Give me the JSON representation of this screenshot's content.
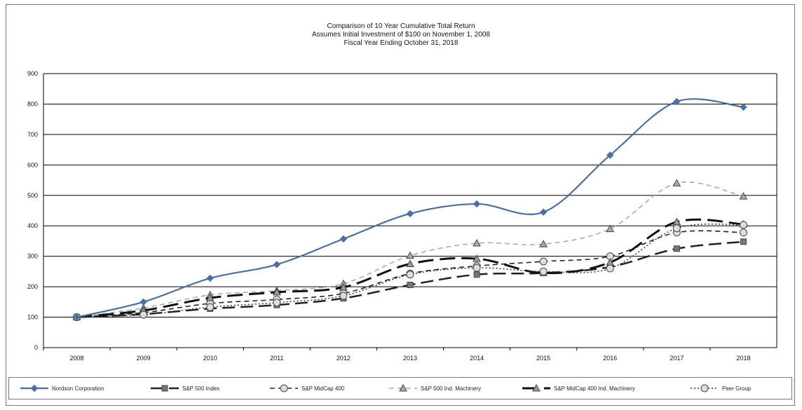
{
  "chart_data": {
    "type": "line",
    "title": "Comparison of 10 Year Cumulative Total Return",
    "subtitle": "Assumes Initial Investment of $100 on November 1, 2008",
    "subtitle2": "Fiscal Year Ending October 31, 2018",
    "xlabel": "",
    "ylabel": "",
    "ylim": [
      0,
      900
    ],
    "yticks": [
      "0",
      "100",
      "200",
      "300",
      "400",
      "500",
      "600",
      "700",
      "800",
      "900"
    ],
    "categories": [
      "2008",
      "2009",
      "2010",
      "2011",
      "2012",
      "2013",
      "2014",
      "2015",
      "2016",
      "2017",
      "2018"
    ],
    "grid": true,
    "legend_position": "bottom",
    "series": [
      {
        "name": "Nordson Corporation",
        "color": "#4a6fa5",
        "style": "solid",
        "marker": "diamond",
        "values": [
          100,
          150,
          228,
          273,
          357,
          440,
          472,
          445,
          632,
          808,
          790
        ]
      },
      {
        "name": "S&P 500 Index",
        "color": "#222222",
        "style": "longdash",
        "marker": "square",
        "values": [
          100,
          110,
          128,
          140,
          162,
          206,
          240,
          245,
          265,
          325,
          348
        ]
      },
      {
        "name": "S&P MidCap 400",
        "color": "#222222",
        "style": "dash",
        "marker": "circle",
        "values": [
          100,
          115,
          145,
          158,
          178,
          243,
          268,
          283,
          300,
          378,
          378
        ]
      },
      {
        "name": "S&P 500 Ind. Machinery",
        "color": "#aaaaaa",
        "style": "dash",
        "marker": "triangle",
        "values": [
          100,
          130,
          173,
          187,
          210,
          302,
          343,
          340,
          390,
          540,
          497
        ]
      },
      {
        "name": "S&P MidCap 400 Ind. Machinery",
        "color": "#111111",
        "style": "heavydash",
        "marker": "triangle",
        "values": [
          100,
          122,
          163,
          182,
          198,
          275,
          292,
          245,
          280,
          413,
          405
        ]
      },
      {
        "name": "Peer Group",
        "color": "#333333",
        "style": "dot",
        "marker": "circle",
        "values": [
          100,
          108,
          133,
          148,
          170,
          240,
          262,
          250,
          260,
          392,
          403
        ]
      }
    ]
  }
}
